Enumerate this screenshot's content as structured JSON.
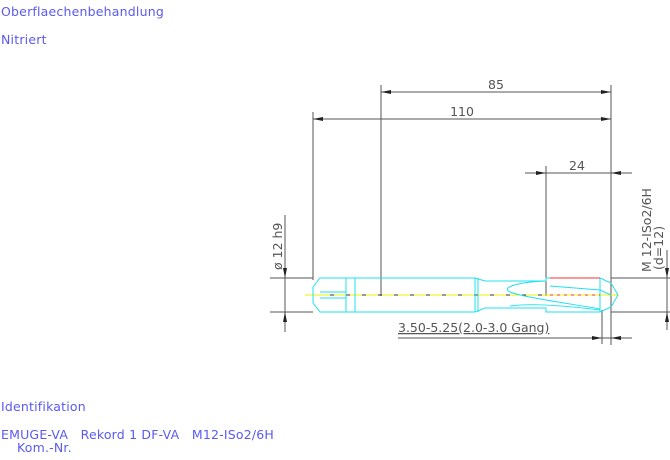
{
  "header": {
    "surface_label": "Oberflaechenbehandlung",
    "surface_value": "Nitriert"
  },
  "drawing": {
    "dim_overall": "110",
    "dim_shank_to_tip": "85",
    "dim_thread_length": "24",
    "dim_shank_diameter": "ø 12 h9",
    "thread_spec": "M 12-ISo2/6H",
    "thread_diameter": "(d=12)",
    "chamfer_spec": "3.50-5.25(2.0-3.0 Gang)",
    "colors": {
      "dimension": "#555555",
      "tool": "#22e0f0",
      "centerline": "#f0f000",
      "thread": "#f03030",
      "text": "#5a5af0"
    }
  },
  "footer": {
    "ident_label": "Identifikation",
    "ident_value": "EMUGE-VA   Rekord 1 DF-VA   M12-ISo2/6H",
    "kom_label": "Kom.-Nr."
  }
}
